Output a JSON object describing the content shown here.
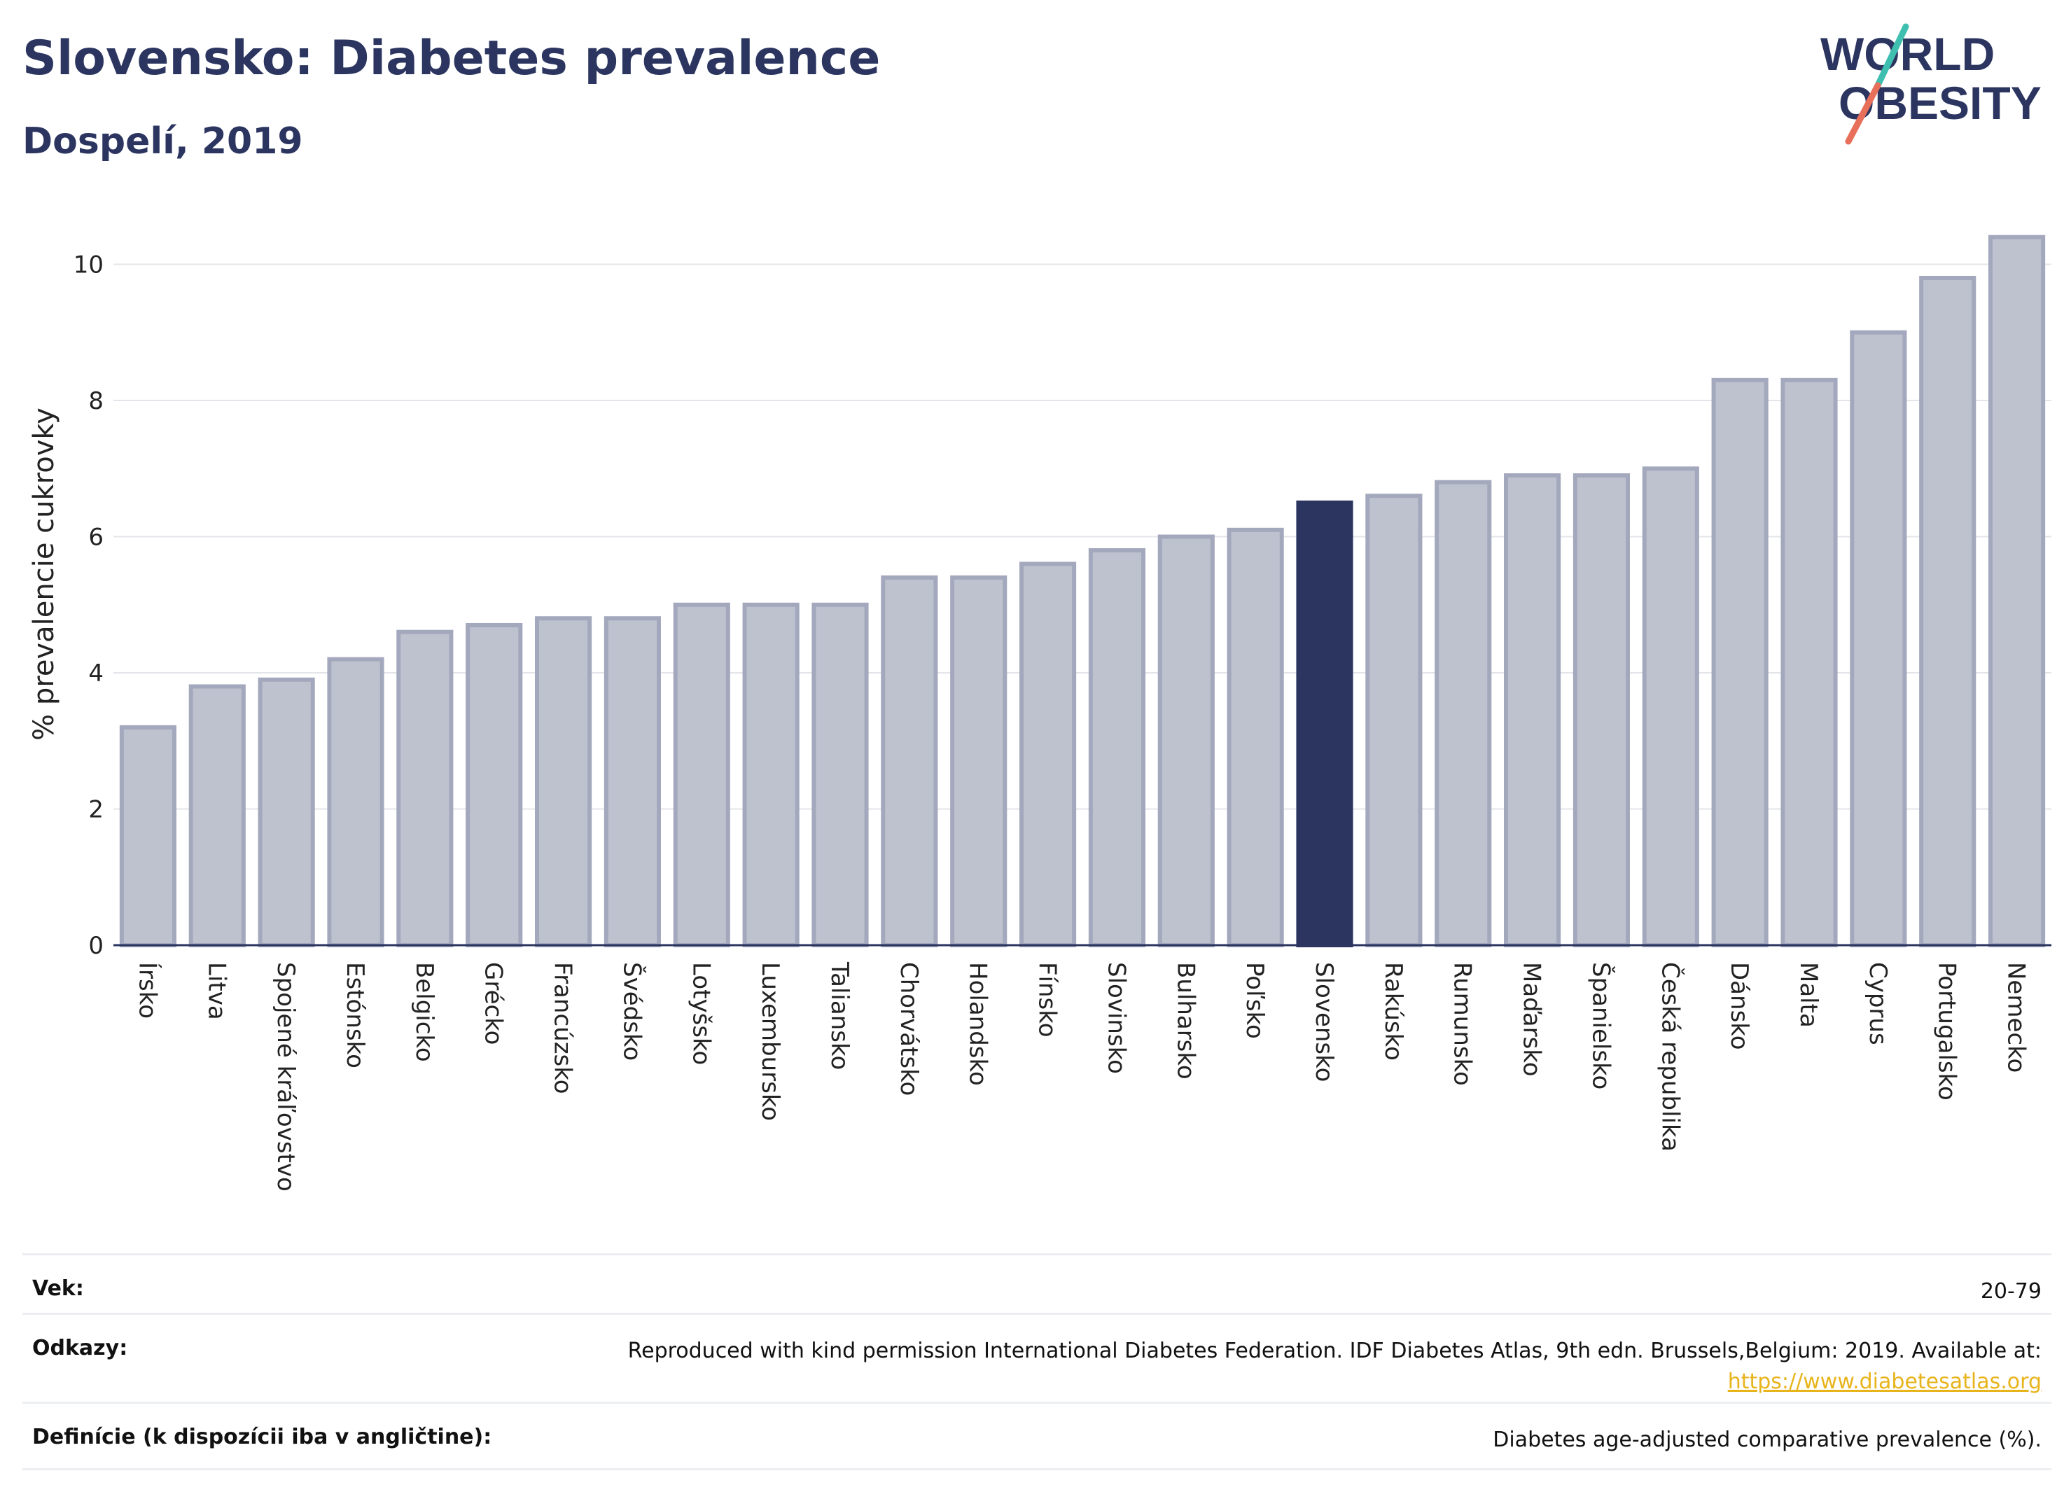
{
  "header": {
    "title": "Slovensko: Diabetes prevalence",
    "subtitle": "Dospelí, 2019"
  },
  "logo": {
    "line1": "WORLD",
    "line2": "OBESITY",
    "text_color": "#2b3560",
    "slash_teal": "#3fbfb0",
    "slash_coral": "#e8705a"
  },
  "chart_data": {
    "type": "bar",
    "title": "",
    "xlabel": "",
    "ylabel": "% prevalencie cukrovky",
    "ylim": [
      0,
      10.9
    ],
    "yticks": [
      0,
      2,
      4,
      6,
      8,
      10
    ],
    "grid": true,
    "highlight": "Slovensko",
    "colors": {
      "bar": "#bec2cf",
      "bar_border": "#a3a8bd",
      "highlight": "#2b3560"
    },
    "categories": [
      "Írsko",
      "Litva",
      "Spojené kráľovstvo",
      "Estónsko",
      "Belgicko",
      "Grécko",
      "Francúzsko",
      "Švédsko",
      "Lotyšsko",
      "Luxembursko",
      "Taliansko",
      "Chorvátsko",
      "Holandsko",
      "Fínsko",
      "Slovinsko",
      "Bulharsko",
      "Poľsko",
      "Slovensko",
      "Rakúsko",
      "Rumunsko",
      "Maďarsko",
      "Španielsko",
      "Česká republika",
      "Dánsko",
      "Malta",
      "Cyprus",
      "Portugalsko",
      "Nemecko"
    ],
    "values": [
      3.2,
      3.8,
      3.9,
      4.2,
      4.6,
      4.7,
      4.8,
      4.8,
      5.0,
      5.0,
      5.0,
      5.4,
      5.4,
      5.6,
      5.8,
      6.0,
      6.1,
      6.5,
      6.6,
      6.8,
      6.9,
      6.9,
      7.0,
      8.3,
      8.3,
      9.0,
      9.8,
      10.4
    ]
  },
  "footer": {
    "rows": [
      {
        "label": "Vek:",
        "value": "20-79"
      },
      {
        "label": "Odkazy:",
        "value": "Reproduced with kind permission International Diabetes Federation. IDF Diabetes Atlas, 9th edn. Brussels,Belgium: 2019. Available at:",
        "link": "https://www.diabetesatlas.org"
      },
      {
        "label": "Definície (k dispozícii iba v angličtine):",
        "value": "Diabetes age-adjusted comparative prevalence (%)."
      }
    ]
  }
}
